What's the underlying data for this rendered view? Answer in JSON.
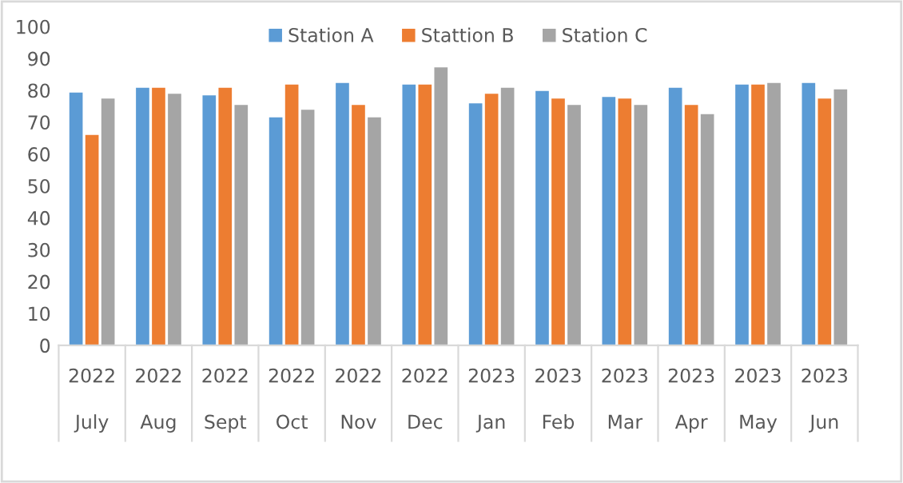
{
  "chart_data": {
    "type": "bar",
    "categories": [
      "2022\nJuly",
      "2022\nAug",
      "2022\nSept",
      "2022\nOct",
      "2022\nNov",
      "2022\nDec",
      "2023\nJan",
      "2023\nFeb",
      "2023\nMar",
      "2023\nApr",
      "2023\nMay",
      "2023\nJun"
    ],
    "series": [
      {
        "name": "Station A",
        "color": "#5b9bd5",
        "values": [
          79.3,
          80.8,
          78.4,
          71.5,
          82.3,
          81.8,
          75.9,
          79.8,
          77.9,
          80.8,
          81.8,
          82.3
        ]
      },
      {
        "name": "Stattion B",
        "color": "#ed7d31",
        "values": [
          66,
          80.8,
          80.8,
          81.8,
          75.4,
          81.8,
          78.9,
          77.4,
          77.4,
          75.4,
          81.8,
          77.4
        ]
      },
      {
        "name": "Station C",
        "color": "#a5a5a5",
        "values": [
          77.4,
          78.9,
          75.4,
          73.9,
          71.5,
          87.2,
          80.8,
          75.4,
          75.4,
          72.5,
          82.3,
          80.3
        ]
      }
    ],
    "ylim": [
      0,
      100
    ],
    "yticks": [
      0,
      10,
      20,
      30,
      40,
      50,
      60,
      70,
      80,
      90,
      100
    ],
    "grid": false,
    "legend": "top"
  }
}
